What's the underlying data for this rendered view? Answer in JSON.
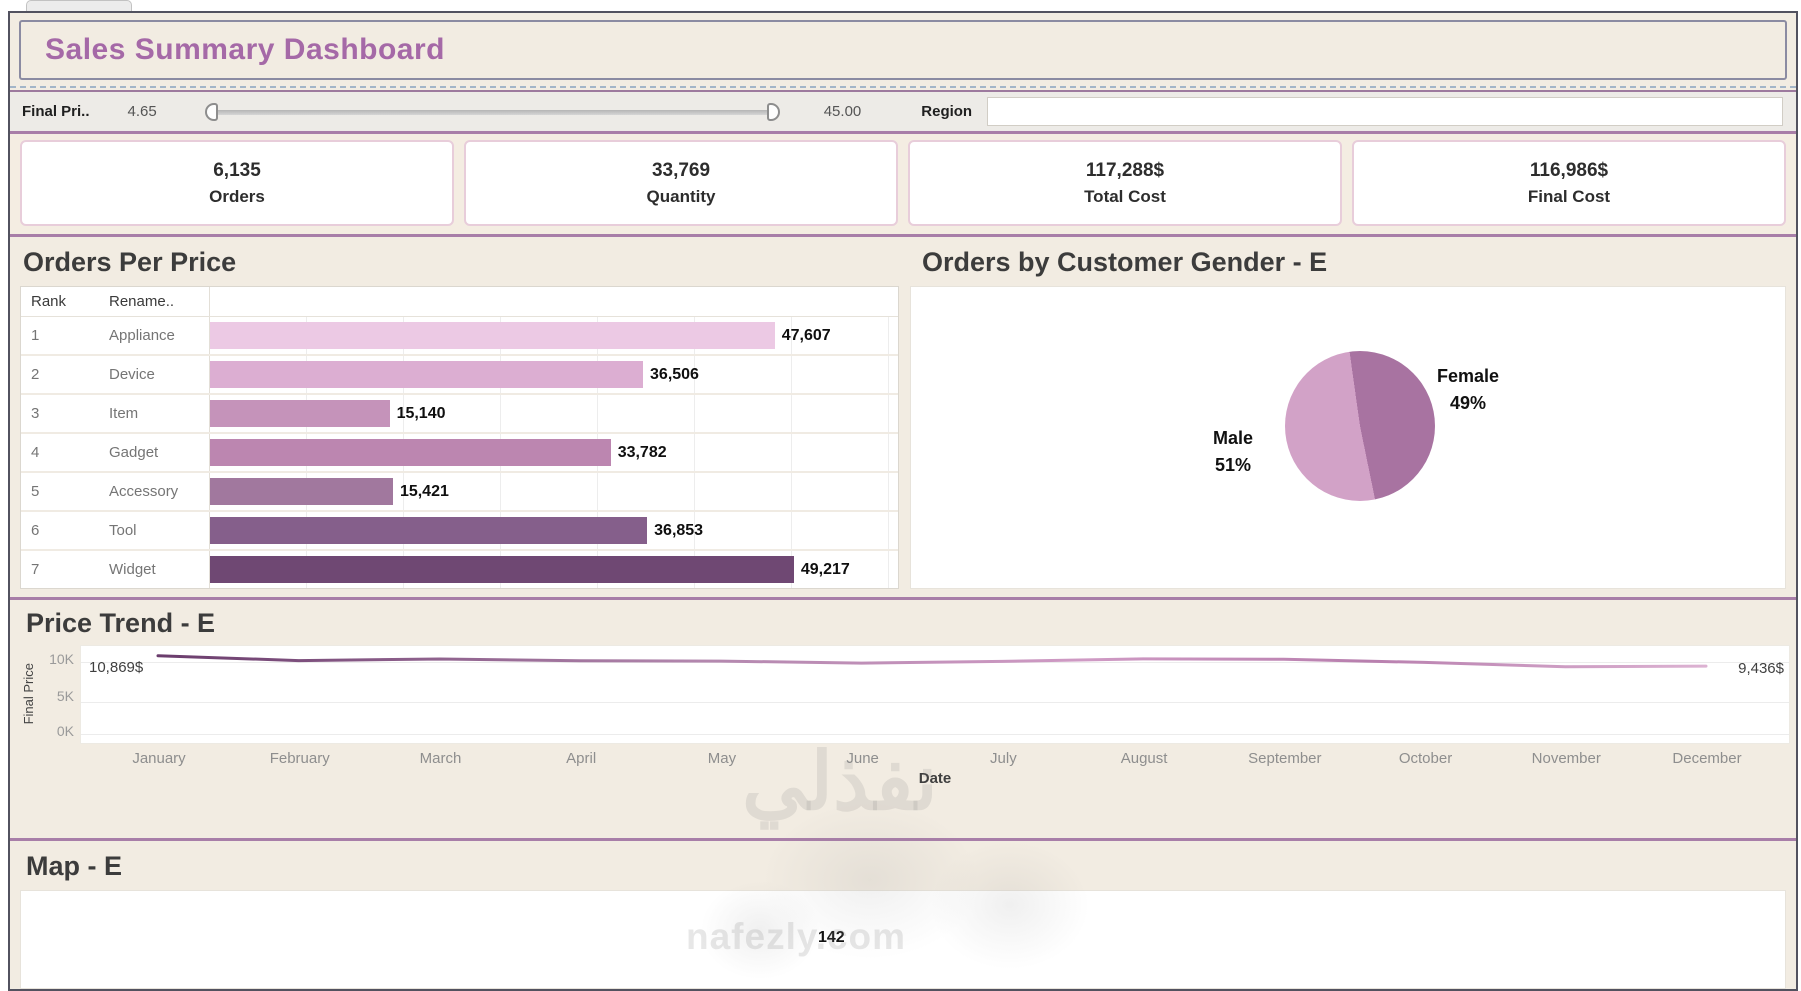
{
  "window_title": "Sales Summary Dashboard",
  "filter_bar": {
    "price_label": "Final Pri..",
    "price_min": "4.65",
    "price_max": "45.00",
    "region_label": "Region",
    "region_value": ""
  },
  "kpis": [
    {
      "value": "6,135",
      "label": "Orders"
    },
    {
      "value": "33,769",
      "label": "Quantity"
    },
    {
      "value": "117,288$",
      "label": "Total Cost"
    },
    {
      "value": "116,986$",
      "label": "Final Cost"
    }
  ],
  "orders_per_price": {
    "title": "Orders Per Price",
    "columns": {
      "rank": "Rank",
      "name": "Rename.."
    },
    "scale_max": 58000,
    "rows": [
      {
        "rank": "1",
        "name": "Appliance",
        "value": 47607,
        "display": "47,607",
        "color": "#ecc9e4"
      },
      {
        "rank": "2",
        "name": "Device",
        "value": 36506,
        "display": "36,506",
        "color": "#dcaed2"
      },
      {
        "rank": "3",
        "name": "Item",
        "value": 15140,
        "display": "15,140",
        "color": "#c593ba"
      },
      {
        "rank": "4",
        "name": "Gadget",
        "value": 33782,
        "display": "33,782",
        "color": "#bc86b0"
      },
      {
        "rank": "5",
        "name": "Accessory",
        "value": 15421,
        "display": "15,421",
        "color": "#a1789e"
      },
      {
        "rank": "6",
        "name": "Tool",
        "value": 36853,
        "display": "36,853",
        "color": "#855f8b"
      },
      {
        "rank": "7",
        "name": "Widget",
        "value": 49217,
        "display": "49,217",
        "color": "#6f4873"
      }
    ]
  },
  "gender": {
    "title": "Orders by Customer Gender - E",
    "start_angle": -8,
    "slices": [
      {
        "label": "Female",
        "pct": "49%",
        "value": 49,
        "color": "#a873a1"
      },
      {
        "label": "Male",
        "pct": "51%",
        "value": 51,
        "color": "#d2a2c7"
      }
    ]
  },
  "price_trend": {
    "title": "Price Trend - E",
    "ylabel": "Final Price",
    "yticks": [
      "10K",
      "5K",
      "0K"
    ],
    "xlabel": "Date",
    "start_label": "10,869$",
    "end_label": "9,436$",
    "months": [
      "January",
      "February",
      "March",
      "April",
      "May",
      "June",
      "July",
      "August",
      "September",
      "October",
      "November",
      "December"
    ],
    "values": [
      10869,
      10200,
      10420,
      10180,
      10120,
      9850,
      10080,
      10430,
      10380,
      9950,
      9350,
      9436
    ],
    "line_colors": [
      "#6a3c6c",
      "#b387ae",
      "#cf9ac4",
      "#b87fae",
      "#dcb2d2"
    ]
  },
  "map": {
    "title": "Map - E",
    "label": "142"
  },
  "watermark": {
    "ar": "نفذلي",
    "en": "nafezly.com"
  },
  "chart_data": [
    {
      "type": "bar",
      "title": "Orders Per Price",
      "orientation": "horizontal",
      "categories": [
        "Appliance",
        "Device",
        "Item",
        "Gadget",
        "Accessory",
        "Tool",
        "Widget"
      ],
      "values": [
        47607,
        36506,
        15140,
        33782,
        15421,
        36853,
        49217
      ],
      "xlim": [
        0,
        58000
      ],
      "grid": true,
      "colors": [
        "#ecc9e4",
        "#dcaed2",
        "#c593ba",
        "#bc86b0",
        "#a1789e",
        "#855f8b",
        "#6f4873"
      ]
    },
    {
      "type": "pie",
      "title": "Orders by Customer Gender - E",
      "categories": [
        "Female",
        "Male"
      ],
      "values": [
        49,
        51
      ],
      "unit": "%",
      "colors": [
        "#a873a1",
        "#d2a2c7"
      ]
    },
    {
      "type": "line",
      "title": "Price Trend - E",
      "x": [
        "January",
        "February",
        "March",
        "April",
        "May",
        "June",
        "July",
        "August",
        "September",
        "October",
        "November",
        "December"
      ],
      "values": [
        10869,
        10200,
        10420,
        10180,
        10120,
        9850,
        10080,
        10430,
        10380,
        9950,
        9350,
        9436
      ],
      "xlabel": "Date",
      "ylabel": "Final Price",
      "ylim": [
        0,
        12000
      ],
      "ytick_labels": [
        "0K",
        "5K",
        "10K"
      ],
      "annotations": [
        "10,869$",
        "9,436$"
      ],
      "grid": true,
      "legend": false
    }
  ]
}
